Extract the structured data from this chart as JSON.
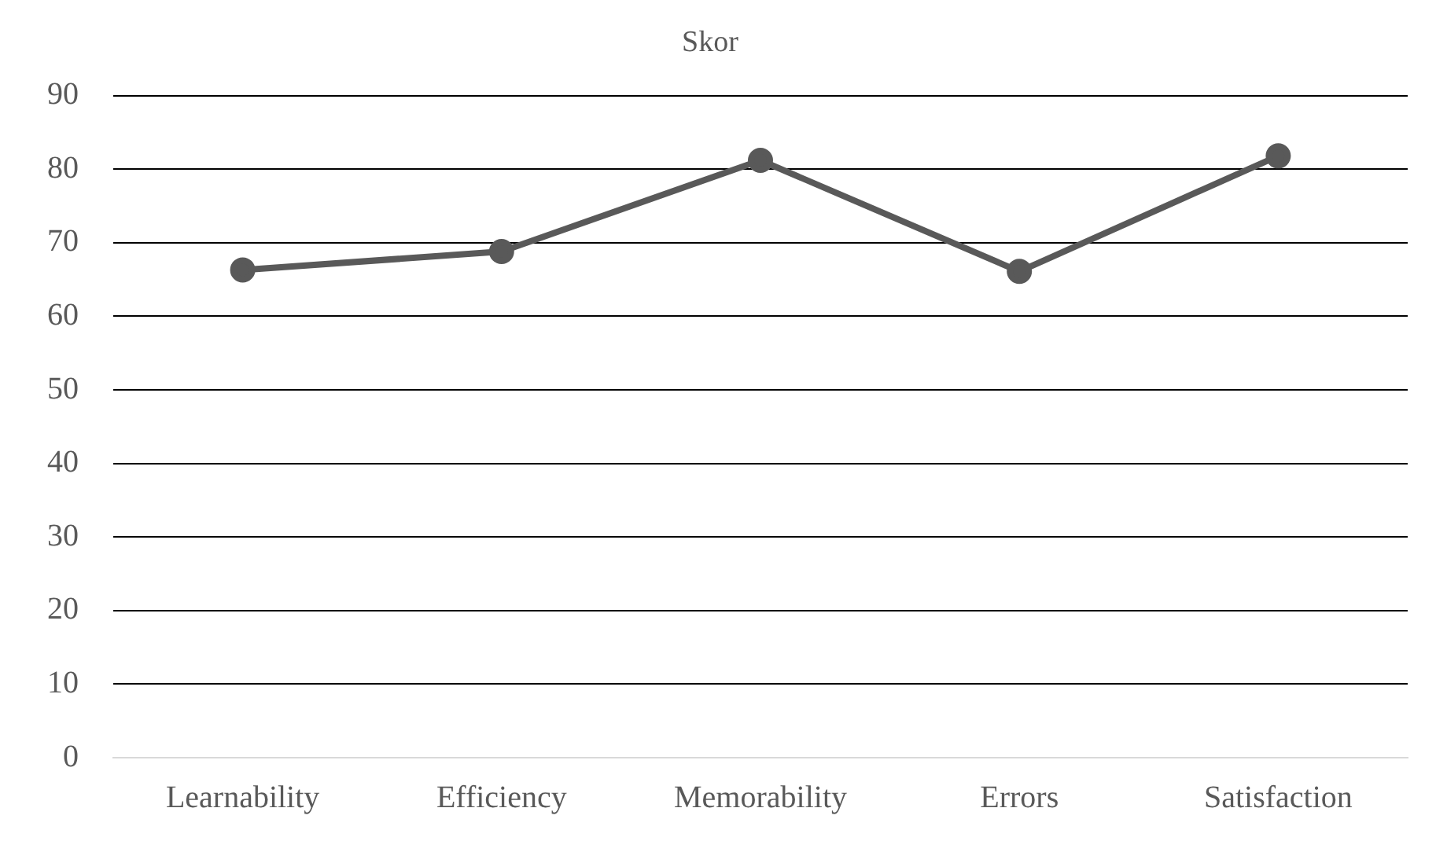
{
  "chart_data": {
    "type": "line",
    "title": "Skor",
    "categories": [
      "Learnability",
      "Efficiency",
      "Memorability",
      "Errors",
      "Satisfaction"
    ],
    "series": [
      {
        "color": "#595959",
        "values": [
          66.3,
          68.8,
          81.2,
          66.1,
          81.8
        ]
      }
    ],
    "ylim": [
      0,
      90
    ],
    "yticks": [
      0,
      10,
      20,
      30,
      40,
      50,
      60,
      70,
      80,
      90
    ],
    "grid": "y",
    "legend": false,
    "marker": "circle",
    "line_style": "solid"
  }
}
